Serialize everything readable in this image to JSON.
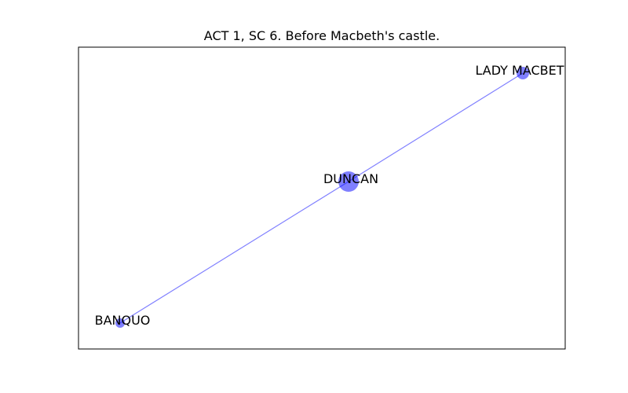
{
  "title": "ACT 1, SC 6. Before Macbeth's castle.",
  "colors": {
    "node_fill": "#0000ff",
    "edge": "#0000ff",
    "frame": "#000000"
  },
  "nodes": [
    {
      "id": "duncan",
      "label": "DUNCAN"
    },
    {
      "id": "lady-macbeth",
      "label": "LADY MACBET"
    },
    {
      "id": "banquo",
      "label": "BANQUO"
    }
  ],
  "edges": [
    {
      "source": "duncan",
      "target": "lady-macbeth"
    },
    {
      "source": "duncan",
      "target": "banquo"
    }
  ]
}
